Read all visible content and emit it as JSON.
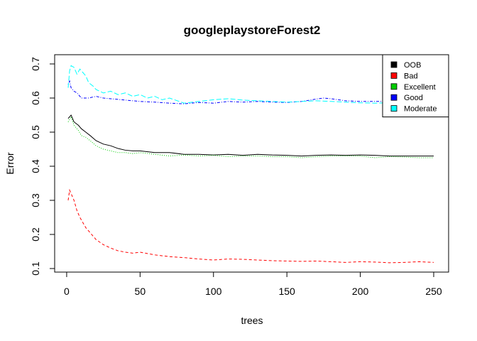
{
  "chart_data": {
    "type": "line",
    "title": "googleplaystoreForest2",
    "xlabel": "trees",
    "ylabel": "Error",
    "xlim": [
      1,
      250
    ],
    "ylim": [
      0.1,
      0.7
    ],
    "xticks": [
      0,
      50,
      100,
      150,
      200,
      250
    ],
    "yticks": [
      0.1,
      0.2,
      0.3,
      0.4,
      0.5,
      0.6,
      0.7
    ],
    "grid": false,
    "legend_position": "top-right",
    "series": [
      {
        "name": "OOB",
        "color": "#000000",
        "dash": "solid",
        "x": [
          1,
          3,
          5,
          8,
          10,
          13,
          16,
          20,
          25,
          30,
          35,
          40,
          45,
          50,
          60,
          70,
          80,
          90,
          100,
          110,
          120,
          130,
          140,
          150,
          160,
          170,
          180,
          190,
          200,
          210,
          220,
          230,
          240,
          250
        ],
        "y": [
          0.54,
          0.55,
          0.53,
          0.52,
          0.51,
          0.5,
          0.49,
          0.475,
          0.465,
          0.46,
          0.452,
          0.447,
          0.445,
          0.445,
          0.44,
          0.44,
          0.435,
          0.435,
          0.433,
          0.435,
          0.432,
          0.435,
          0.433,
          0.432,
          0.43,
          0.432,
          0.433,
          0.432,
          0.433,
          0.432,
          0.43,
          0.43,
          0.43,
          0.43
        ]
      },
      {
        "name": "Bad",
        "color": "#ff0000",
        "dash": "dashed",
        "x": [
          1,
          2,
          3,
          5,
          7,
          9,
          11,
          13,
          15,
          18,
          20,
          25,
          30,
          35,
          40,
          45,
          50,
          60,
          70,
          80,
          90,
          100,
          110,
          120,
          130,
          140,
          150,
          160,
          170,
          180,
          190,
          200,
          210,
          220,
          230,
          240,
          250
        ],
        "y": [
          0.3,
          0.33,
          0.32,
          0.3,
          0.27,
          0.25,
          0.235,
          0.22,
          0.21,
          0.195,
          0.185,
          0.17,
          0.16,
          0.152,
          0.148,
          0.145,
          0.148,
          0.14,
          0.135,
          0.132,
          0.128,
          0.125,
          0.128,
          0.127,
          0.125,
          0.123,
          0.122,
          0.121,
          0.122,
          0.12,
          0.118,
          0.12,
          0.119,
          0.117,
          0.118,
          0.12,
          0.118
        ]
      },
      {
        "name": "Excellent",
        "color": "#00cd00",
        "dash": "dotted",
        "x": [
          1,
          3,
          5,
          8,
          10,
          13,
          16,
          20,
          25,
          30,
          35,
          40,
          45,
          50,
          60,
          70,
          80,
          90,
          100,
          110,
          120,
          130,
          140,
          150,
          160,
          170,
          180,
          190,
          200,
          210,
          220,
          230,
          240,
          250
        ],
        "y": [
          0.53,
          0.545,
          0.52,
          0.505,
          0.49,
          0.485,
          0.475,
          0.46,
          0.45,
          0.445,
          0.44,
          0.44,
          0.437,
          0.44,
          0.435,
          0.43,
          0.433,
          0.43,
          0.432,
          0.428,
          0.43,
          0.43,
          0.428,
          0.428,
          0.425,
          0.428,
          0.43,
          0.43,
          0.43,
          0.425,
          0.428,
          0.427,
          0.425,
          0.425
        ]
      },
      {
        "name": "Good",
        "color": "#0000ff",
        "dash": "dotdash",
        "x": [
          1,
          2,
          3,
          5,
          7,
          10,
          15,
          20,
          25,
          30,
          40,
          50,
          60,
          70,
          80,
          90,
          100,
          110,
          120,
          130,
          140,
          150,
          160,
          170,
          175,
          180,
          190,
          200,
          210,
          220,
          230,
          240,
          250
        ],
        "y": [
          0.64,
          0.65,
          0.63,
          0.62,
          0.615,
          0.6,
          0.6,
          0.605,
          0.6,
          0.598,
          0.594,
          0.59,
          0.588,
          0.585,
          0.583,
          0.587,
          0.585,
          0.59,
          0.588,
          0.59,
          0.588,
          0.587,
          0.59,
          0.597,
          0.6,
          0.598,
          0.592,
          0.59,
          0.59,
          0.59,
          0.592,
          0.592,
          0.595
        ]
      },
      {
        "name": "Moderate",
        "color": "#00ffff",
        "dash": "longdash",
        "x": [
          1,
          2,
          3,
          5,
          7,
          9,
          11,
          13,
          15,
          18,
          20,
          25,
          30,
          35,
          40,
          45,
          50,
          55,
          60,
          65,
          70,
          80,
          90,
          100,
          110,
          120,
          130,
          140,
          150,
          160,
          170,
          180,
          190,
          200,
          210,
          220,
          230,
          240,
          250
        ],
        "y": [
          0.63,
          0.68,
          0.695,
          0.69,
          0.67,
          0.685,
          0.675,
          0.665,
          0.645,
          0.635,
          0.625,
          0.615,
          0.62,
          0.61,
          0.615,
          0.605,
          0.61,
          0.6,
          0.605,
          0.595,
          0.6,
          0.585,
          0.59,
          0.595,
          0.598,
          0.594,
          0.592,
          0.59,
          0.588,
          0.59,
          0.592,
          0.59,
          0.588,
          0.586,
          0.585,
          0.586,
          0.585,
          0.588,
          0.59
        ]
      }
    ]
  }
}
